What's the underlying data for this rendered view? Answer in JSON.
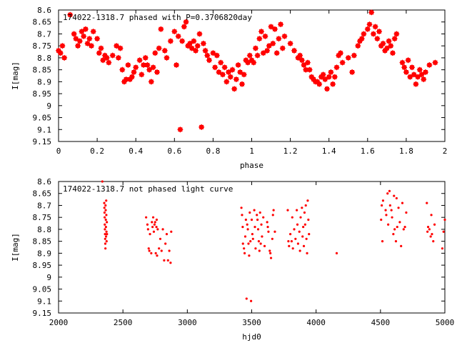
{
  "chart_data": [
    {
      "type": "scatter",
      "title": "174022-1318.7 phased with P=0.3706820day",
      "xlabel": "phase",
      "ylabel": "I[mag]",
      "xlim": [
        0,
        2
      ],
      "ylim": [
        8.6,
        9.15
      ],
      "y_inverted": true,
      "xticks": [
        "0",
        "0.2",
        "0.4",
        "0.6",
        "0.8",
        "1",
        "1.2",
        "1.4",
        "1.6",
        "1.8",
        "2"
      ],
      "yticks": [
        "8.6",
        "8.65",
        "8.7",
        "8.75",
        "8.8",
        "8.85",
        "8.9",
        "8.95",
        "9",
        "9.05",
        "9.1",
        "9.15"
      ],
      "color": "#ff0000",
      "marker": "star",
      "points": [
        [
          0.0,
          8.77
        ],
        [
          0.01,
          8.78
        ],
        [
          0.02,
          8.75
        ],
        [
          0.03,
          8.8
        ],
        [
          0.06,
          8.62
        ],
        [
          0.08,
          8.7
        ],
        [
          0.09,
          8.72
        ],
        [
          0.1,
          8.75
        ],
        [
          0.11,
          8.73
        ],
        [
          0.12,
          8.69
        ],
        [
          0.13,
          8.71
        ],
        [
          0.14,
          8.68
        ],
        [
          0.15,
          8.74
        ],
        [
          0.16,
          8.72
        ],
        [
          0.17,
          8.75
        ],
        [
          0.18,
          8.69
        ],
        [
          0.2,
          8.72
        ],
        [
          0.21,
          8.78
        ],
        [
          0.22,
          8.76
        ],
        [
          0.23,
          8.81
        ],
        [
          0.24,
          8.79
        ],
        [
          0.25,
          8.8
        ],
        [
          0.26,
          8.82
        ],
        [
          0.28,
          8.79
        ],
        [
          0.3,
          8.75
        ],
        [
          0.31,
          8.8
        ],
        [
          0.32,
          8.76
        ],
        [
          0.33,
          8.85
        ],
        [
          0.34,
          8.9
        ],
        [
          0.35,
          8.89
        ],
        [
          0.36,
          8.83
        ],
        [
          0.37,
          8.89
        ],
        [
          0.38,
          8.88
        ],
        [
          0.39,
          8.86
        ],
        [
          0.4,
          8.84
        ],
        [
          0.42,
          8.81
        ],
        [
          0.43,
          8.87
        ],
        [
          0.44,
          8.83
        ],
        [
          0.45,
          8.8
        ],
        [
          0.46,
          8.83
        ],
        [
          0.47,
          8.85
        ],
        [
          0.48,
          8.9
        ],
        [
          0.49,
          8.84
        ],
        [
          0.5,
          8.78
        ],
        [
          0.51,
          8.86
        ],
        [
          0.52,
          8.76
        ],
        [
          0.53,
          8.68
        ],
        [
          0.55,
          8.77
        ],
        [
          0.56,
          8.8
        ],
        [
          0.58,
          8.73
        ],
        [
          0.6,
          8.69
        ],
        [
          0.61,
          8.83
        ],
        [
          0.62,
          8.71
        ],
        [
          0.63,
          9.1
        ],
        [
          0.64,
          8.73
        ],
        [
          0.65,
          8.67
        ],
        [
          0.66,
          8.65
        ],
        [
          0.67,
          8.75
        ],
        [
          0.68,
          8.74
        ],
        [
          0.69,
          8.76
        ],
        [
          0.7,
          8.73
        ],
        [
          0.71,
          8.77
        ],
        [
          0.72,
          8.75
        ],
        [
          0.73,
          8.7
        ],
        [
          0.74,
          9.09
        ],
        [
          0.75,
          8.74
        ],
        [
          0.76,
          8.77
        ],
        [
          0.77,
          8.79
        ],
        [
          0.78,
          8.81
        ],
        [
          0.8,
          8.78
        ],
        [
          0.81,
          8.84
        ],
        [
          0.82,
          8.79
        ],
        [
          0.83,
          8.86
        ],
        [
          0.84,
          8.82
        ],
        [
          0.85,
          8.87
        ],
        [
          0.86,
          8.84
        ],
        [
          0.87,
          8.9
        ],
        [
          0.88,
          8.86
        ],
        [
          0.89,
          8.88
        ],
        [
          0.9,
          8.85
        ],
        [
          0.91,
          8.93
        ],
        [
          0.92,
          8.89
        ],
        [
          0.93,
          8.83
        ],
        [
          0.94,
          8.86
        ],
        [
          0.95,
          8.91
        ],
        [
          0.96,
          8.87
        ],
        [
          0.97,
          8.81
        ],
        [
          0.98,
          8.82
        ],
        [
          0.99,
          8.79
        ],
        [
          1.0,
          8.81
        ],
        [
          1.01,
          8.82
        ],
        [
          1.02,
          8.76
        ],
        [
          1.03,
          8.79
        ],
        [
          1.04,
          8.72
        ],
        [
          1.05,
          8.69
        ],
        [
          1.06,
          8.78
        ],
        [
          1.07,
          8.71
        ],
        [
          1.08,
          8.77
        ],
        [
          1.09,
          8.75
        ],
        [
          1.1,
          8.67
        ],
        [
          1.11,
          8.74
        ],
        [
          1.12,
          8.68
        ],
        [
          1.13,
          8.78
        ],
        [
          1.14,
          8.72
        ],
        [
          1.15,
          8.66
        ],
        [
          1.16,
          8.76
        ],
        [
          1.17,
          8.71
        ],
        [
          1.2,
          8.74
        ],
        [
          1.22,
          8.77
        ],
        [
          1.24,
          8.8
        ],
        [
          1.25,
          8.79
        ],
        [
          1.26,
          8.81
        ],
        [
          1.27,
          8.83
        ],
        [
          1.28,
          8.85
        ],
        [
          1.29,
          8.82
        ],
        [
          1.3,
          8.85
        ],
        [
          1.31,
          8.88
        ],
        [
          1.32,
          8.89
        ],
        [
          1.33,
          8.9
        ],
        [
          1.34,
          8.9
        ],
        [
          1.35,
          8.91
        ],
        [
          1.36,
          8.88
        ],
        [
          1.37,
          8.87
        ],
        [
          1.38,
          8.89
        ],
        [
          1.39,
          8.93
        ],
        [
          1.4,
          8.88
        ],
        [
          1.41,
          8.86
        ],
        [
          1.42,
          8.91
        ],
        [
          1.43,
          8.88
        ],
        [
          1.44,
          8.84
        ],
        [
          1.45,
          8.79
        ],
        [
          1.46,
          8.78
        ],
        [
          1.47,
          8.82
        ],
        [
          1.5,
          8.8
        ],
        [
          1.52,
          8.86
        ],
        [
          1.53,
          8.79
        ],
        [
          1.55,
          8.75
        ],
        [
          1.56,
          8.73
        ],
        [
          1.57,
          8.72
        ],
        [
          1.58,
          8.7
        ],
        [
          1.6,
          8.68
        ],
        [
          1.61,
          8.66
        ],
        [
          1.62,
          8.61
        ],
        [
          1.63,
          8.7
        ],
        [
          1.64,
          8.67
        ],
        [
          1.65,
          8.72
        ],
        [
          1.66,
          8.69
        ],
        [
          1.67,
          8.75
        ],
        [
          1.68,
          8.74
        ],
        [
          1.69,
          8.77
        ],
        [
          1.7,
          8.76
        ],
        [
          1.71,
          8.73
        ],
        [
          1.72,
          8.75
        ],
        [
          1.73,
          8.78
        ],
        [
          1.74,
          8.72
        ],
        [
          1.75,
          8.7
        ],
        [
          1.78,
          8.82
        ],
        [
          1.79,
          8.84
        ],
        [
          1.8,
          8.86
        ],
        [
          1.81,
          8.81
        ],
        [
          1.82,
          8.88
        ],
        [
          1.83,
          8.84
        ],
        [
          1.84,
          8.87
        ],
        [
          1.85,
          8.91
        ],
        [
          1.86,
          8.88
        ],
        [
          1.87,
          8.85
        ],
        [
          1.88,
          8.87
        ],
        [
          1.89,
          8.89
        ],
        [
          1.9,
          8.86
        ],
        [
          1.92,
          8.83
        ],
        [
          1.95,
          8.82
        ]
      ]
    },
    {
      "type": "scatter",
      "title": "174022-1318.7 not phased light curve",
      "xlabel": "hjd0",
      "ylabel": "I[mag]",
      "xlim": [
        2000,
        5000
      ],
      "ylim": [
        8.6,
        9.15
      ],
      "y_inverted": true,
      "xticks": [
        "2000",
        "2500",
        "3000",
        "3500",
        "4000",
        "4500",
        "5000"
      ],
      "yticks": [
        "8.6",
        "8.65",
        "8.7",
        "8.75",
        "8.8",
        "8.85",
        "8.9",
        "8.95",
        "9",
        "9.05",
        "9.1",
        "9.15"
      ],
      "color": "#ff0000",
      "marker": "dot",
      "points": [
        [
          2340,
          8.6
        ],
        [
          2355,
          8.69
        ],
        [
          2356,
          8.71
        ],
        [
          2357,
          8.73
        ],
        [
          2358,
          8.75
        ],
        [
          2359,
          8.78
        ],
        [
          2360,
          8.8
        ],
        [
          2361,
          8.82
        ],
        [
          2362,
          8.84
        ],
        [
          2363,
          8.86
        ],
        [
          2364,
          8.88
        ],
        [
          2365,
          8.7
        ],
        [
          2366,
          8.72
        ],
        [
          2367,
          8.76
        ],
        [
          2368,
          8.79
        ],
        [
          2369,
          8.83
        ],
        [
          2370,
          8.68
        ],
        [
          2371,
          8.74
        ],
        [
          2372,
          8.81
        ],
        [
          2373,
          8.85
        ],
        [
          2375,
          8.77
        ],
        [
          2376,
          8.82
        ],
        [
          2680,
          8.75
        ],
        [
          2690,
          8.78
        ],
        [
          2695,
          8.8
        ],
        [
          2700,
          8.88
        ],
        [
          2705,
          8.89
        ],
        [
          2710,
          8.82
        ],
        [
          2720,
          8.9
        ],
        [
          2725,
          8.77
        ],
        [
          2730,
          8.79
        ],
        [
          2735,
          8.75
        ],
        [
          2740,
          8.81
        ],
        [
          2745,
          8.78
        ],
        [
          2750,
          8.77
        ],
        [
          2755,
          8.9
        ],
        [
          2760,
          8.79
        ],
        [
          2762,
          8.76
        ],
        [
          2765,
          8.91
        ],
        [
          2770,
          8.8
        ],
        [
          2780,
          8.88
        ],
        [
          2790,
          8.84
        ],
        [
          2800,
          8.89
        ],
        [
          2810,
          8.8
        ],
        [
          2820,
          8.93
        ],
        [
          2830,
          8.86
        ],
        [
          2840,
          8.82
        ],
        [
          2850,
          8.93
        ],
        [
          2860,
          8.89
        ],
        [
          2870,
          8.94
        ],
        [
          2875,
          8.81
        ],
        [
          3420,
          8.71
        ],
        [
          3425,
          8.74
        ],
        [
          3430,
          8.79
        ],
        [
          3432,
          8.86
        ],
        [
          3440,
          8.88
        ],
        [
          3445,
          8.9
        ],
        [
          3450,
          8.83
        ],
        [
          3455,
          8.76
        ],
        [
          3460,
          9.09
        ],
        [
          3465,
          8.78
        ],
        [
          3470,
          8.8
        ],
        [
          3475,
          8.86
        ],
        [
          3480,
          8.91
        ],
        [
          3485,
          8.73
        ],
        [
          3490,
          8.85
        ],
        [
          3495,
          9.1
        ],
        [
          3500,
          8.76
        ],
        [
          3505,
          8.82
        ],
        [
          3510,
          8.84
        ],
        [
          3520,
          8.72
        ],
        [
          3525,
          8.79
        ],
        [
          3530,
          8.88
        ],
        [
          3540,
          8.74
        ],
        [
          3545,
          8.76
        ],
        [
          3550,
          8.8
        ],
        [
          3555,
          8.85
        ],
        [
          3560,
          8.89
        ],
        [
          3565,
          8.73
        ],
        [
          3570,
          8.86
        ],
        [
          3575,
          8.78
        ],
        [
          3580,
          8.83
        ],
        [
          3590,
          8.75
        ],
        [
          3600,
          8.87
        ],
        [
          3620,
          8.77
        ],
        [
          3625,
          8.79
        ],
        [
          3630,
          8.81
        ],
        [
          3640,
          8.89
        ],
        [
          3645,
          8.9
        ],
        [
          3650,
          8.92
        ],
        [
          3660,
          8.84
        ],
        [
          3665,
          8.74
        ],
        [
          3670,
          8.72
        ],
        [
          3680,
          8.81
        ],
        [
          3780,
          8.72
        ],
        [
          3785,
          8.85
        ],
        [
          3790,
          8.87
        ],
        [
          3800,
          8.82
        ],
        [
          3810,
          8.85
        ],
        [
          3815,
          8.75
        ],
        [
          3820,
          8.88
        ],
        [
          3830,
          8.8
        ],
        [
          3840,
          8.84
        ],
        [
          3850,
          8.72
        ],
        [
          3855,
          8.78
        ],
        [
          3860,
          8.86
        ],
        [
          3870,
          8.81
        ],
        [
          3875,
          8.89
        ],
        [
          3880,
          8.75
        ],
        [
          3890,
          8.71
        ],
        [
          3895,
          8.83
        ],
        [
          3900,
          8.79
        ],
        [
          3905,
          8.87
        ],
        [
          3910,
          8.73
        ],
        [
          3915,
          8.78
        ],
        [
          3920,
          8.7
        ],
        [
          3925,
          8.84
        ],
        [
          3930,
          8.9
        ],
        [
          3935,
          8.68
        ],
        [
          3940,
          8.76
        ],
        [
          3945,
          8.82
        ],
        [
          4160,
          8.9
        ],
        [
          4505,
          8.76
        ],
        [
          4510,
          8.7
        ],
        [
          4515,
          8.85
        ],
        [
          4520,
          8.68
        ],
        [
          4540,
          8.72
        ],
        [
          4545,
          8.74
        ],
        [
          4555,
          8.65
        ],
        [
          4560,
          8.78
        ],
        [
          4570,
          8.64
        ],
        [
          4575,
          8.7
        ],
        [
          4585,
          8.72
        ],
        [
          4590,
          8.75
        ],
        [
          4600,
          8.82
        ],
        [
          4605,
          8.66
        ],
        [
          4610,
          8.8
        ],
        [
          4620,
          8.85
        ],
        [
          4625,
          8.67
        ],
        [
          4630,
          8.79
        ],
        [
          4640,
          8.71
        ],
        [
          4650,
          8.77
        ],
        [
          4660,
          8.87
        ],
        [
          4670,
          8.69
        ],
        [
          4680,
          8.8
        ],
        [
          4690,
          8.79
        ],
        [
          4700,
          8.73
        ],
        [
          4860,
          8.69
        ],
        [
          4865,
          8.81
        ],
        [
          4870,
          8.79
        ],
        [
          4880,
          8.8
        ],
        [
          4890,
          8.83
        ],
        [
          4895,
          8.74
        ],
        [
          4900,
          8.82
        ],
        [
          4910,
          8.85
        ],
        [
          4920,
          8.78
        ],
        [
          4980,
          8.88
        ],
        [
          4990,
          8.81
        ],
        [
          5000,
          8.76
        ]
      ]
    }
  ]
}
